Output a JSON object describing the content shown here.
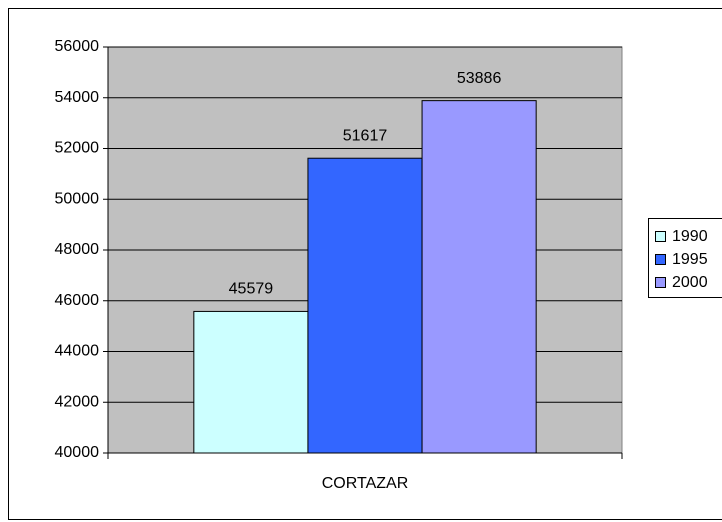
{
  "chart_data": {
    "type": "bar",
    "categories": [
      "CORTAZAR"
    ],
    "series": [
      {
        "name": "1990",
        "color": "#ccffff",
        "values": [
          45579
        ]
      },
      {
        "name": "1995",
        "color": "#3366ff",
        "values": [
          51617
        ]
      },
      {
        "name": "2000",
        "color": "#9999ff",
        "values": [
          53886
        ]
      }
    ],
    "ylim": [
      40000,
      56000
    ],
    "yticks": [
      40000,
      42000,
      44000,
      46000,
      48000,
      50000,
      52000,
      54000,
      56000
    ],
    "grid": true,
    "legend": "right",
    "plot_background": "#c0c0c0"
  }
}
